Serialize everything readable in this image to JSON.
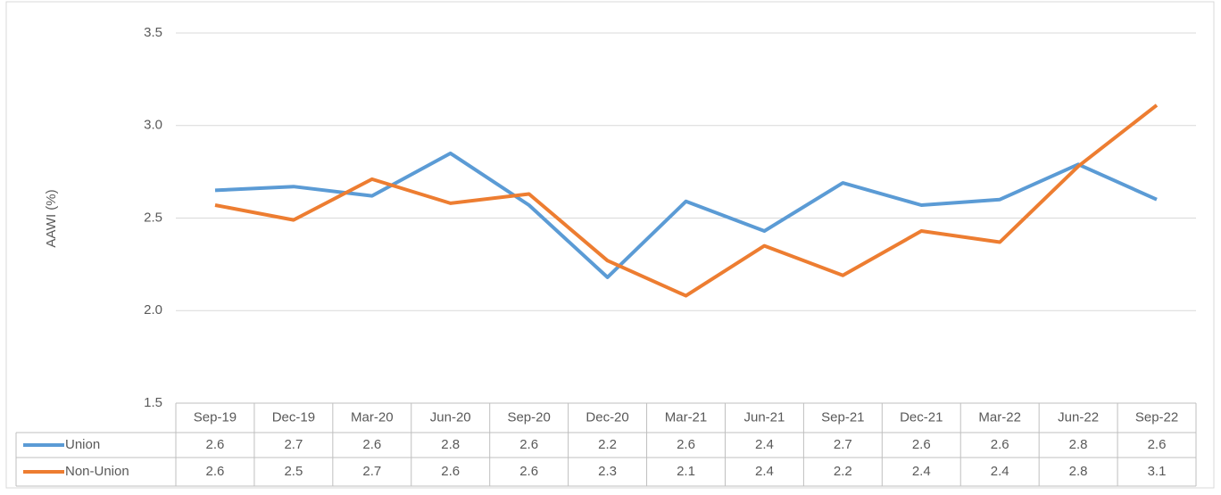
{
  "chart_data": {
    "type": "line",
    "y_label": "AAWI (%)",
    "categories": [
      "Sep-19",
      "Dec-19",
      "Mar-20",
      "Jun-20",
      "Sep-20",
      "Dec-20",
      "Mar-21",
      "Jun-21",
      "Sep-21",
      "Dec-21",
      "Mar-22",
      "Jun-22",
      "Sep-22"
    ],
    "series": [
      {
        "name": "Union",
        "color": "#5b9bd5",
        "values": [
          2.65,
          2.67,
          2.62,
          2.85,
          2.57,
          2.18,
          2.59,
          2.43,
          2.69,
          2.57,
          2.6,
          2.79,
          2.6
        ],
        "value_labels": [
          "2.6",
          "2.7",
          "2.6",
          "2.8",
          "2.6",
          "2.2",
          "2.6",
          "2.4",
          "2.7",
          "2.6",
          "2.6",
          "2.8",
          "2.6"
        ]
      },
      {
        "name": "Non-Union",
        "color": "#ed7d31",
        "values": [
          2.57,
          2.49,
          2.71,
          2.58,
          2.63,
          2.27,
          2.08,
          2.35,
          2.19,
          2.43,
          2.37,
          2.78,
          3.11
        ],
        "value_labels": [
          "2.6",
          "2.5",
          "2.7",
          "2.6",
          "2.6",
          "2.3",
          "2.1",
          "2.4",
          "2.2",
          "2.4",
          "2.4",
          "2.8",
          "3.1"
        ]
      }
    ],
    "ylim": [
      1.5,
      3.5
    ],
    "yticks": [
      1.5,
      {
        "value": 2,
        "label": "2.0"
      },
      2.5,
      {
        "value": 3,
        "label": "3.0"
      },
      3.5
    ],
    "grid": true
  }
}
